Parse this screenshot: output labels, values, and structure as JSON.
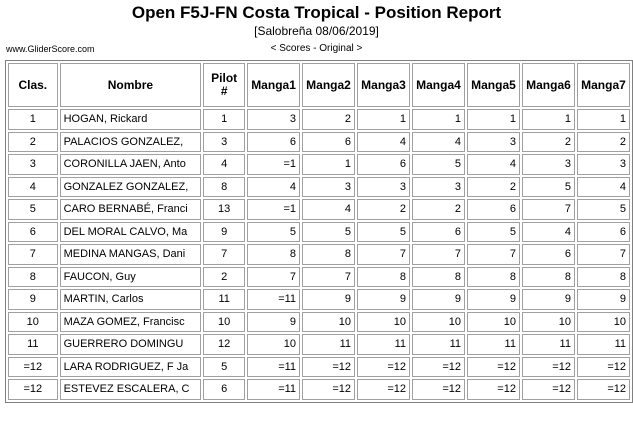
{
  "report": {
    "title": "Open F5J-FN Costa Tropical - Position Report",
    "subtitle": "[Salobreña 08/06/2019]",
    "site": "www.GliderScore.com",
    "mode": "< Scores - Original >"
  },
  "table": {
    "headers": [
      "Clas.",
      "Nombre",
      "Pilot #",
      "Manga1",
      "Manga2",
      "Manga3",
      "Manga4",
      "Manga5",
      "Manga6",
      "Manga7"
    ],
    "rows": [
      [
        "1",
        "HOGAN, Rickard",
        "1",
        "3",
        "2",
        "1",
        "1",
        "1",
        "1",
        "1"
      ],
      [
        "2",
        "PALACIOS GONZALEZ,",
        "3",
        "6",
        "6",
        "4",
        "4",
        "3",
        "2",
        "2"
      ],
      [
        "3",
        "CORONILLA JAEN, Anto",
        "4",
        "=1",
        "1",
        "6",
        "5",
        "4",
        "3",
        "3"
      ],
      [
        "4",
        "GONZALEZ GONZALEZ,",
        "8",
        "4",
        "3",
        "3",
        "3",
        "2",
        "5",
        "4"
      ],
      [
        "5",
        "CARO BERNABÉ, Franci",
        "13",
        "=1",
        "4",
        "2",
        "2",
        "6",
        "7",
        "5"
      ],
      [
        "6",
        "DEL MORAL CALVO, Ma",
        "9",
        "5",
        "5",
        "5",
        "6",
        "5",
        "4",
        "6"
      ],
      [
        "7",
        "MEDINA MANGAS, Dani",
        "7",
        "8",
        "8",
        "7",
        "7",
        "7",
        "6",
        "7"
      ],
      [
        "8",
        "FAUCON, Guy",
        "2",
        "7",
        "7",
        "8",
        "8",
        "8",
        "8",
        "8"
      ],
      [
        "9",
        "MARTIN, Carlos",
        "11",
        "=11",
        "9",
        "9",
        "9",
        "9",
        "9",
        "9"
      ],
      [
        "10",
        "MAZA GOMEZ, Francisc",
        "10",
        "9",
        "10",
        "10",
        "10",
        "10",
        "10",
        "10"
      ],
      [
        "11",
        "GUERRERO DOMINGU",
        "12",
        "10",
        "11",
        "11",
        "11",
        "11",
        "11",
        "11"
      ],
      [
        "=12",
        "LARA RODRIGUEZ, F Ja",
        "5",
        "=11",
        "=12",
        "=12",
        "=12",
        "=12",
        "=12",
        "=12"
      ],
      [
        "=12",
        "ESTEVEZ ESCALERA, C",
        "6",
        "=11",
        "=12",
        "=12",
        "=12",
        "=12",
        "=12",
        "=12"
      ]
    ]
  }
}
